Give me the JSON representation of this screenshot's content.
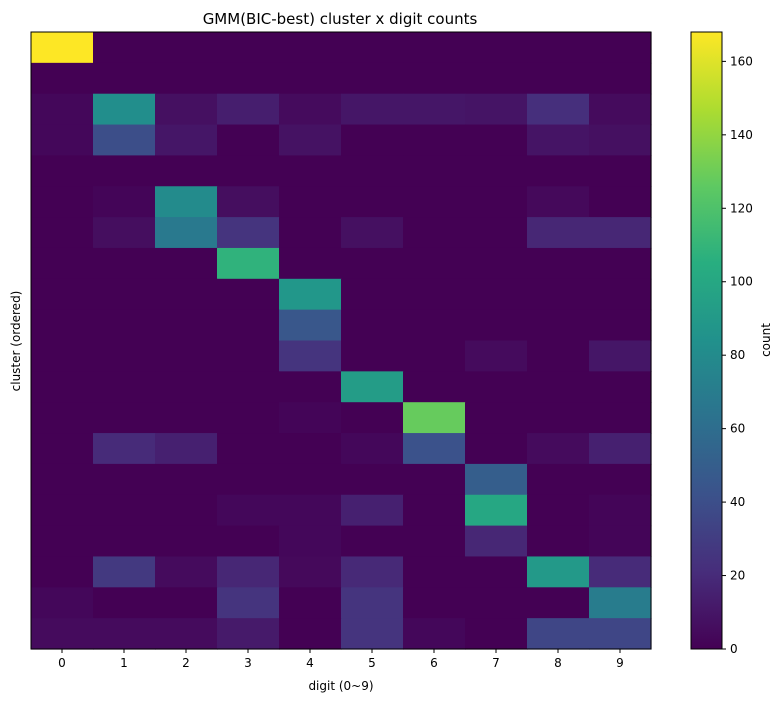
{
  "chart_data": {
    "type": "heatmap",
    "title": "GMM(BIC-best) cluster x digit counts",
    "xlabel": "digit (0~9)",
    "ylabel": "cluster (ordered)",
    "x_categories": [
      "0",
      "1",
      "2",
      "3",
      "4",
      "5",
      "6",
      "7",
      "8",
      "9"
    ],
    "rows": 20,
    "colorbar": {
      "label": "count",
      "range": [
        0,
        168
      ],
      "ticks": [
        0,
        20,
        40,
        60,
        80,
        100,
        120,
        140,
        160
      ],
      "colormap": "viridis"
    },
    "values": [
      [
        168,
        0,
        0,
        0,
        0,
        0,
        0,
        0,
        0,
        0
      ],
      [
        0,
        0,
        0,
        0,
        0,
        0,
        0,
        0,
        0,
        0
      ],
      [
        3,
        82,
        7,
        14,
        5,
        10,
        10,
        9,
        22,
        5
      ],
      [
        3,
        40,
        10,
        0,
        8,
        0,
        0,
        0,
        9,
        7
      ],
      [
        0,
        0,
        0,
        0,
        0,
        0,
        0,
        0,
        0,
        0
      ],
      [
        0,
        2,
        80,
        6,
        0,
        0,
        0,
        0,
        4,
        0
      ],
      [
        0,
        6,
        68,
        25,
        0,
        7,
        0,
        0,
        18,
        18
      ],
      [
        0,
        0,
        0,
        108,
        0,
        0,
        0,
        0,
        0,
        0
      ],
      [
        0,
        0,
        0,
        0,
        88,
        0,
        0,
        0,
        0,
        0
      ],
      [
        0,
        0,
        0,
        0,
        45,
        0,
        0,
        0,
        0,
        0
      ],
      [
        0,
        0,
        0,
        0,
        25,
        0,
        0,
        5,
        0,
        10
      ],
      [
        0,
        0,
        0,
        0,
        0,
        92,
        0,
        0,
        0,
        0
      ],
      [
        0,
        0,
        0,
        0,
        2,
        0,
        128,
        0,
        0,
        0
      ],
      [
        0,
        20,
        15,
        0,
        0,
        3,
        42,
        0,
        5,
        15
      ],
      [
        0,
        0,
        0,
        0,
        0,
        0,
        0,
        50,
        0,
        0
      ],
      [
        0,
        0,
        0,
        3,
        3,
        15,
        0,
        100,
        0,
        2
      ],
      [
        0,
        0,
        0,
        0,
        3,
        0,
        0,
        18,
        0,
        2
      ],
      [
        0,
        28,
        5,
        18,
        4,
        19,
        0,
        0,
        90,
        20
      ],
      [
        3,
        0,
        0,
        25,
        0,
        25,
        0,
        0,
        0,
        70
      ],
      [
        5,
        5,
        5,
        12,
        0,
        25,
        3,
        0,
        35,
        35
      ]
    ]
  }
}
